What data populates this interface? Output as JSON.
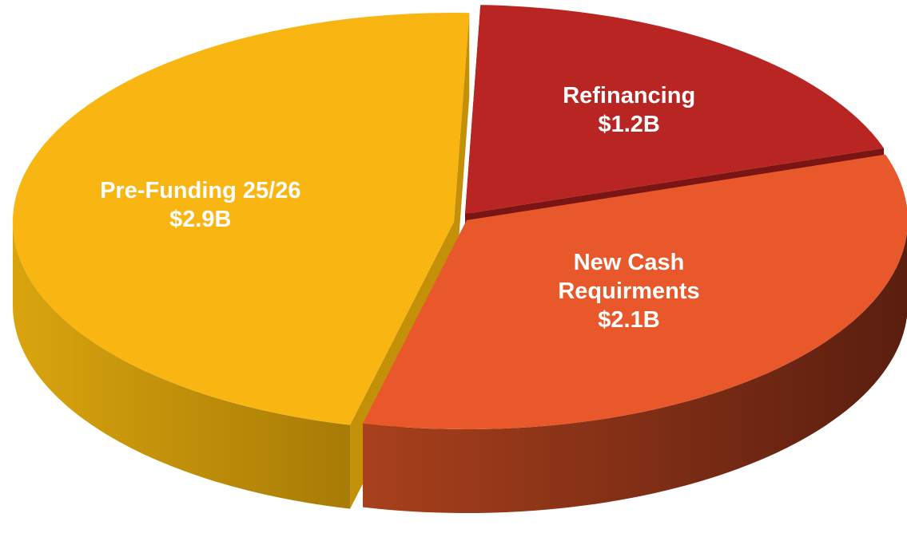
{
  "chart_data": {
    "type": "pie3d",
    "categories": [
      "Refinancing",
      "New Cash Requirments",
      "Pre-Funding 25/26"
    ],
    "values": [
      1.2,
      2.1,
      2.9
    ],
    "value_labels": [
      "$1.2B",
      "$2.1B",
      "$2.9B"
    ],
    "colors": [
      "#b82522",
      "#e8582a",
      "#f9b512"
    ]
  }
}
